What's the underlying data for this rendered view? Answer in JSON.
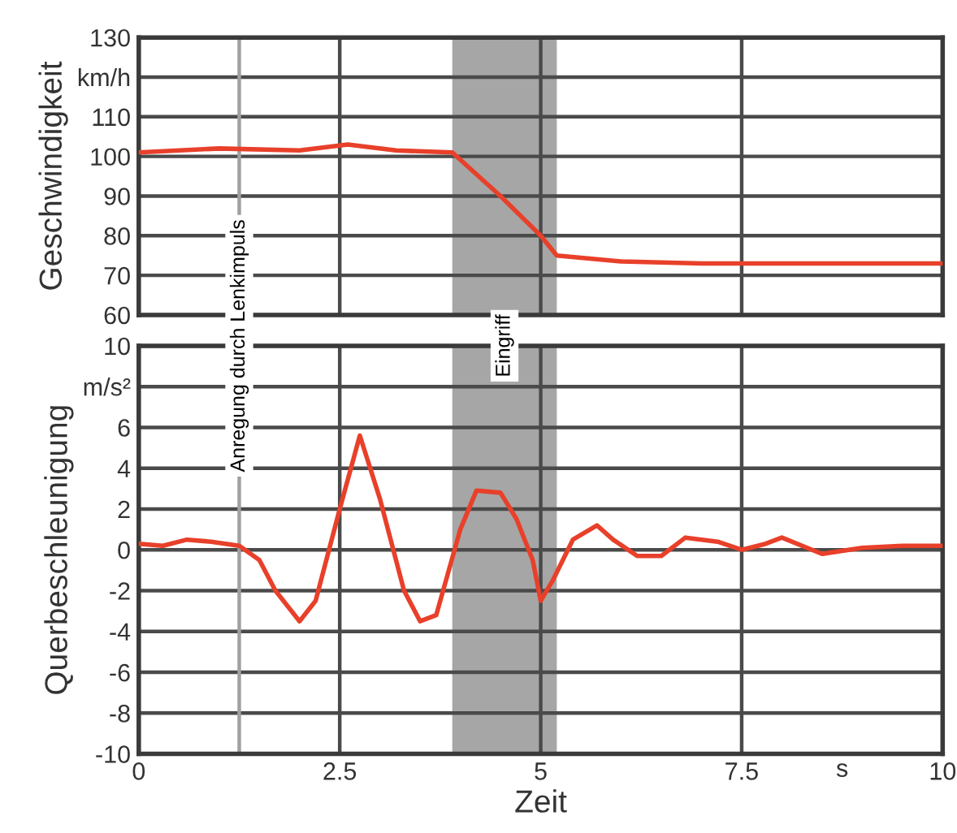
{
  "chart_data": [
    {
      "type": "line",
      "ylabel": "Geschwindigkeit",
      "x": [
        0,
        1,
        2,
        2.6,
        3.2,
        3.9,
        4.5,
        5.0,
        5.2,
        6.0,
        7,
        8,
        9,
        10
      ],
      "series": [
        {
          "color": "#e8402a",
          "values": [
            101,
            102,
            101.5,
            103,
            101.5,
            101,
            90,
            80,
            75,
            73.5,
            73,
            73,
            73,
            73
          ]
        }
      ],
      "xlim": [
        0,
        10
      ],
      "xticks": [
        0,
        2.5,
        5,
        7.5,
        10
      ],
      "ylim": [
        60,
        130
      ],
      "yticks": [
        60,
        70,
        80,
        90,
        100,
        110,
        {
          "value": 120,
          "label": "km/h"
        },
        130
      ],
      "tick_labels": "y",
      "grid": true,
      "marker": "none",
      "line_style": "solid",
      "bands": [
        {
          "axis": "x",
          "from": 3.9,
          "to": 5.2,
          "color": "#a6a6a6"
        }
      ],
      "ref_lines": [
        {
          "axis": "x",
          "value": 1.25,
          "color": "#a0a0a0"
        }
      ]
    },
    {
      "type": "line",
      "ylabel": "Querbeschleunigung",
      "xlabel": "Zeit",
      "annotations": [
        "s"
      ],
      "x": [
        0,
        0.3,
        0.6,
        0.9,
        1.25,
        1.5,
        1.7,
        2.0,
        2.2,
        2.5,
        2.75,
        3.0,
        3.3,
        3.5,
        3.7,
        4.0,
        4.2,
        4.5,
        4.7,
        4.9,
        5.0,
        5.15,
        5.4,
        5.7,
        5.9,
        6.2,
        6.5,
        6.8,
        7.2,
        7.5,
        7.8,
        8.0,
        8.5,
        9.0,
        9.5,
        10
      ],
      "series": [
        {
          "color": "#e8402a",
          "values": [
            0.3,
            0.2,
            0.5,
            0.4,
            0.2,
            -0.5,
            -2,
            -3.5,
            -2.5,
            2,
            5.6,
            2.5,
            -2,
            -3.5,
            -3.2,
            1,
            2.9,
            2.8,
            1.5,
            -0.5,
            -2.5,
            -1.5,
            0.5,
            1.2,
            0.5,
            -0.3,
            -0.3,
            0.6,
            0.4,
            0,
            0.3,
            0.6,
            -0.2,
            0.1,
            0.2,
            0.2
          ]
        }
      ],
      "xlim": [
        0,
        10
      ],
      "xticks": [
        0,
        2.5,
        5,
        7.5,
        10
      ],
      "ylim": [
        -10,
        10
      ],
      "yticks": [
        -10,
        -8,
        -6,
        -4,
        -2,
        0,
        2,
        4,
        6,
        {
          "value": 8,
          "label": "m/s²"
        },
        10
      ],
      "grid": true,
      "marker": "none",
      "line_style": "solid",
      "bands": [
        {
          "axis": "x",
          "from": 3.9,
          "to": 5.2,
          "color": "#a6a6a6",
          "label": "Eingriff"
        }
      ],
      "ref_lines": [
        {
          "axis": "x",
          "value": 1.25,
          "color": "#a0a0a0",
          "label": "Anregung durch Lenkimpuls"
        }
      ]
    }
  ]
}
